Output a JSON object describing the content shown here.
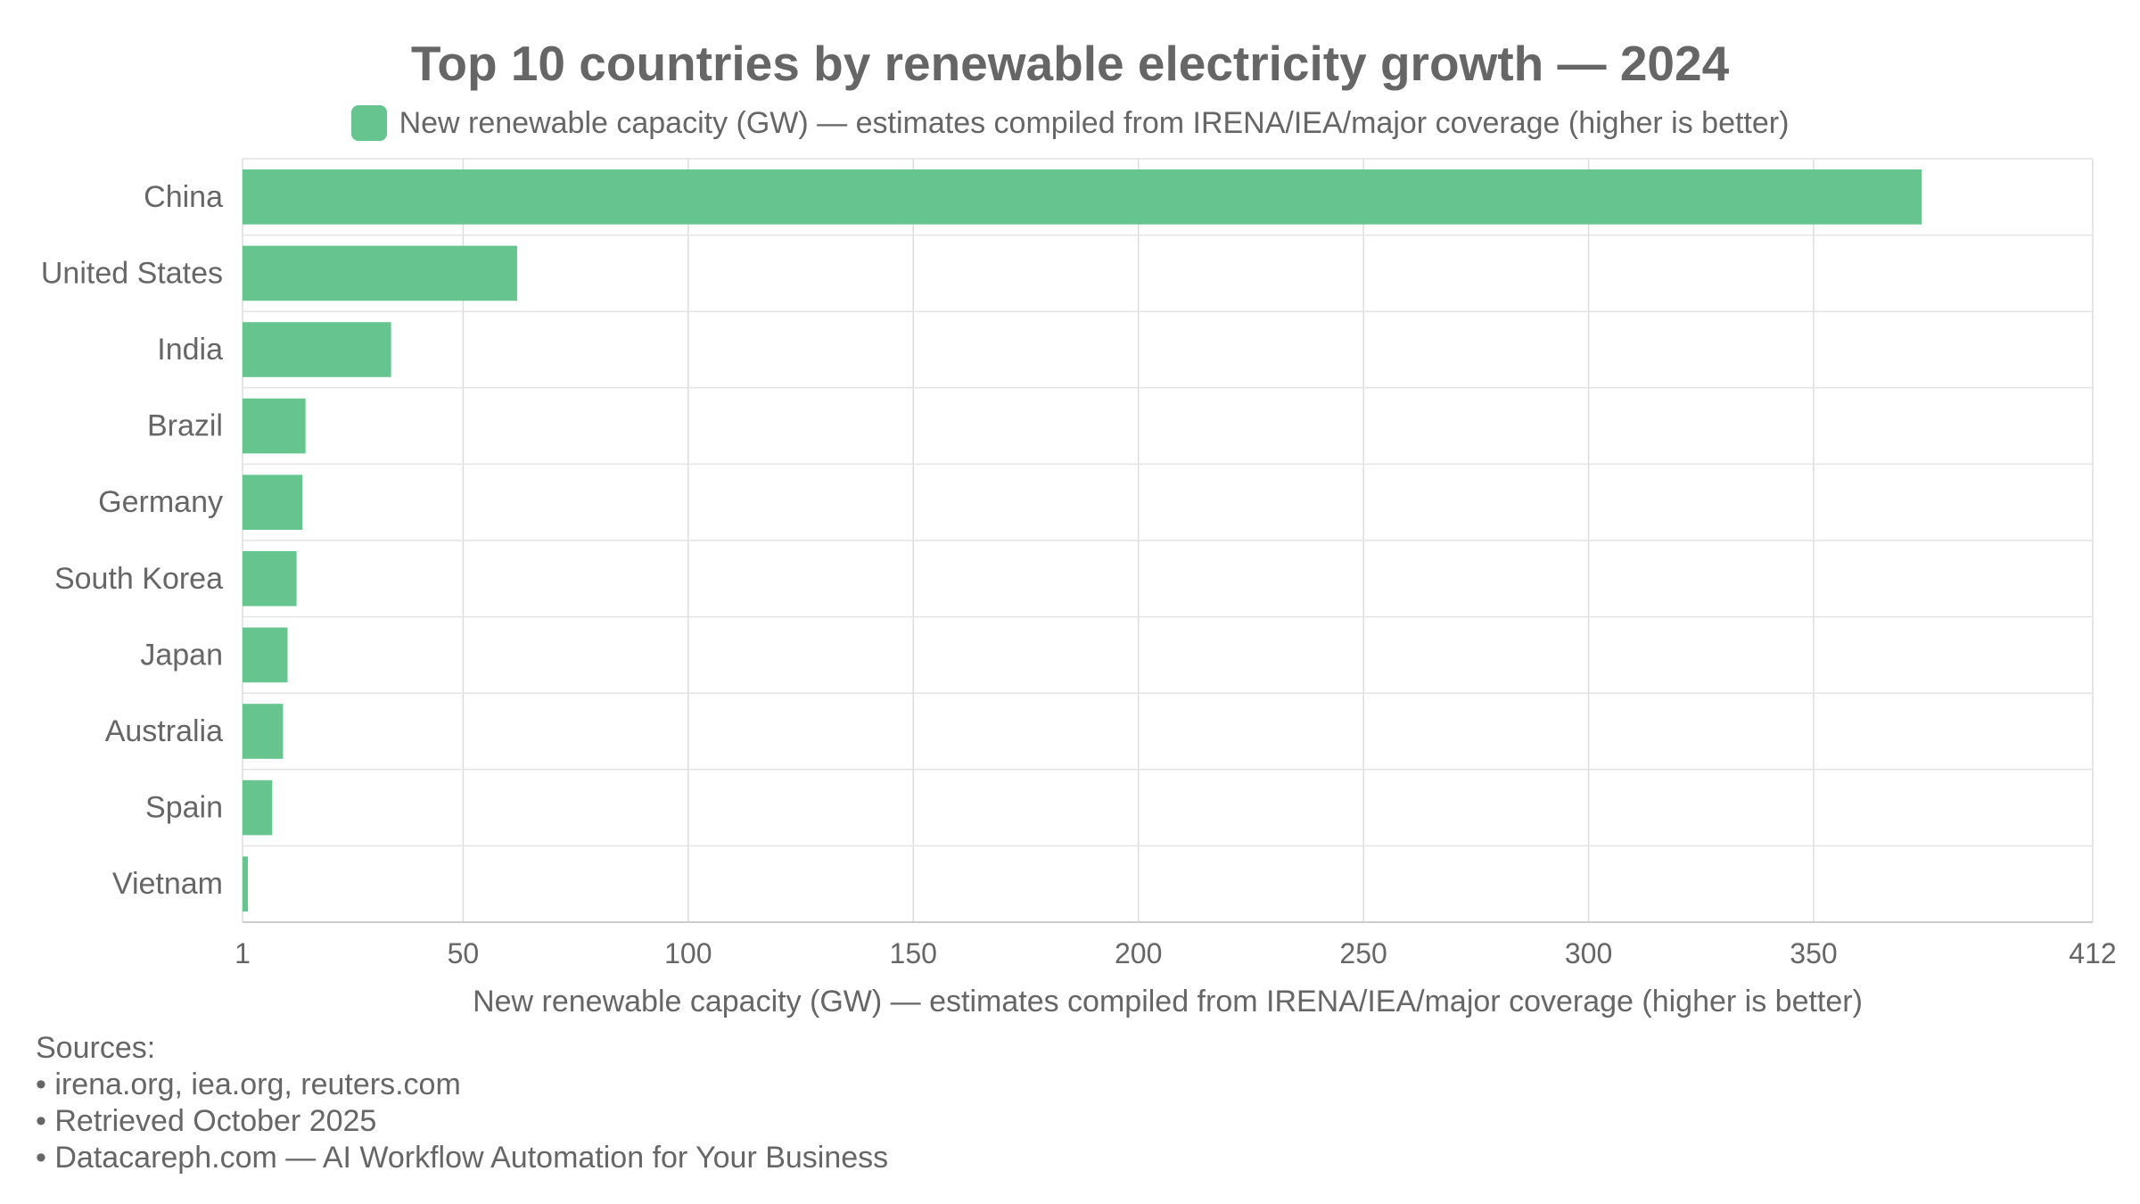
{
  "chart_data": {
    "type": "bar",
    "orientation": "horizontal",
    "title": "Top 10 countries by renewable electricity growth — 2024",
    "legend": {
      "position": "top-center",
      "entries": [
        {
          "name": "New renewable capacity (GW) — estimates compiled from IRENA/IEA/major coverage (higher is better)",
          "color": "#66c58f"
        }
      ]
    },
    "categories": [
      "China",
      "United States",
      "India",
      "Brazil",
      "Germany",
      "South Korea",
      "Japan",
      "Australia",
      "Spain",
      "Vietnam"
    ],
    "series": [
      {
        "name": "New renewable capacity (GW) — estimates compiled from IRENA/IEA/major coverage (higher is better)",
        "values": [
          374,
          62,
          34,
          15,
          14.3,
          13,
          11,
          10,
          7.6,
          2.2
        ],
        "color": "#66c58f"
      }
    ],
    "xlabel": "New renewable capacity (GW) — estimates compiled from IRENA/IEA/major coverage (higher is better)",
    "ylabel": "",
    "xlim": [
      1,
      412
    ],
    "xticks": [
      1,
      50,
      100,
      150,
      200,
      250,
      300,
      350,
      412
    ],
    "grid": true
  },
  "sources": {
    "heading": "Sources:",
    "items": [
      "• irena.org, iea.org, reuters.com",
      "• Retrieved October 2025",
      "• Datacareph.com — AI Workflow Automation for Your Business"
    ]
  }
}
